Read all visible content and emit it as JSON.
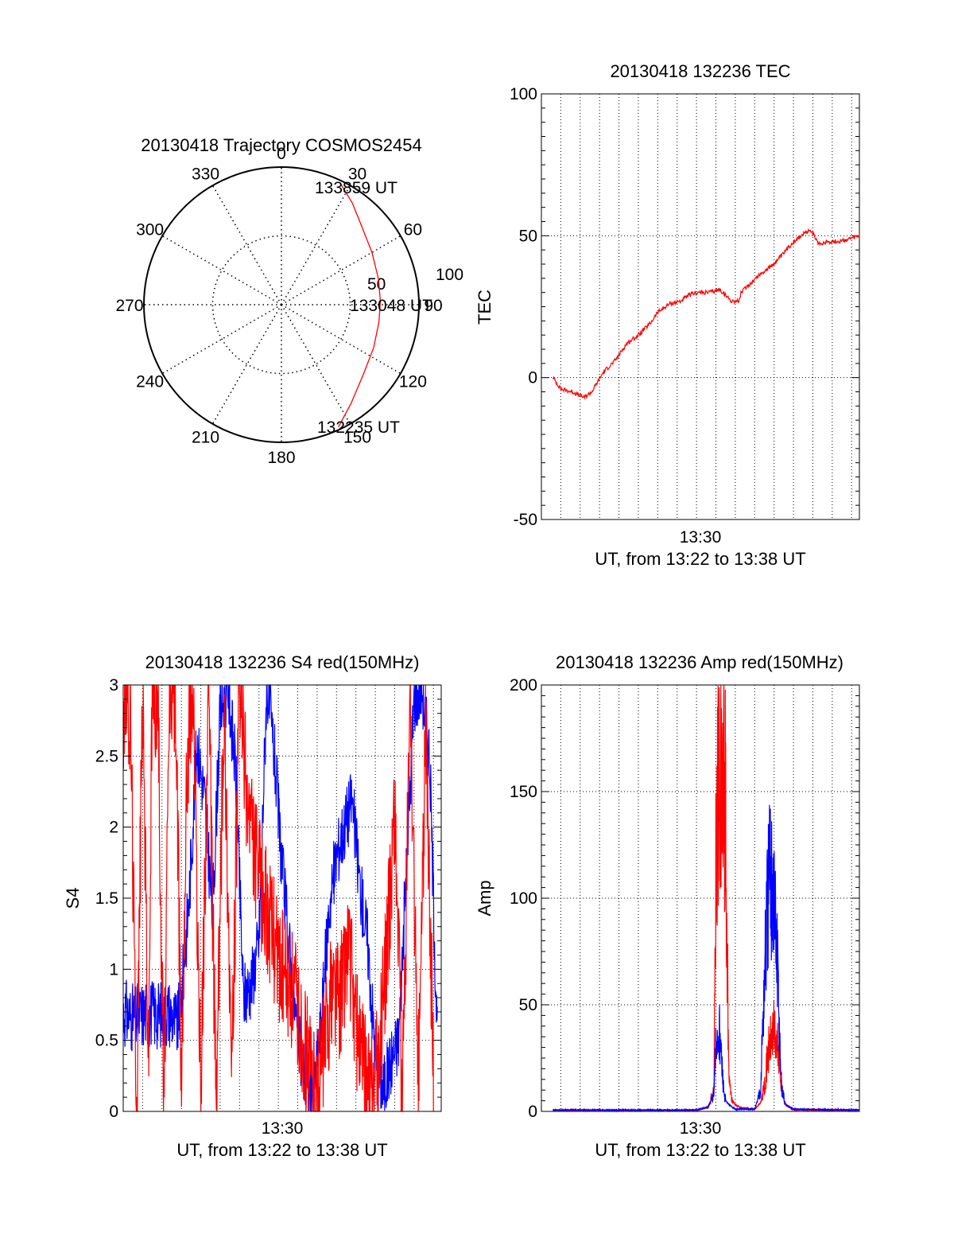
{
  "colors": {
    "red": "#ff0000",
    "blue": "#0000ff",
    "axis": "#000000",
    "grid": "#000000"
  },
  "chart_data": [
    {
      "id": "polar",
      "type": "polar-trajectory",
      "title": "20130418 Trajectory COSMOS2454",
      "angle_labels": [
        "0",
        "30",
        "60",
        "90",
        "120",
        "150",
        "180",
        "210",
        "240",
        "270",
        "300",
        "330"
      ],
      "radial_labels": [
        "50",
        "100"
      ],
      "radial_range": [
        0,
        100
      ],
      "labels": {
        "start": "132235 UT",
        "mid": "133048 UT",
        "end": "133859 UT"
      },
      "trajectory": {
        "azimuth_deg": [
          155,
          145,
          130,
          115,
          100,
          88,
          75,
          60,
          45,
          35,
          26
        ],
        "zenith": [
          98,
          88,
          78,
          74,
          72,
          72,
          73,
          76,
          82,
          90,
          98
        ]
      }
    },
    {
      "id": "tec",
      "type": "line",
      "title": "20130418 132236 TEC",
      "ylabel": "TEC",
      "xlabel": "UT, from 13:22 to 13:38 UT",
      "x_tick_label": "13:30",
      "ylim": [
        -50,
        100
      ],
      "yticks": [
        "100",
        "50",
        "0",
        "-50"
      ],
      "y_values": [
        100,
        50,
        0,
        -50
      ],
      "xlim_minutes": [
        0,
        16.4
      ],
      "series": [
        {
          "color": "red",
          "x": [
            0.6,
            1.0,
            1.6,
            2.2,
            2.6,
            3.2,
            3.8,
            4.4,
            5.0,
            5.6,
            6.0,
            6.6,
            7.2,
            7.6,
            8.0,
            8.6,
            9.2,
            9.8,
            10.2,
            10.3,
            10.6,
            11.2,
            11.8,
            12.4,
            13.0,
            13.6,
            13.9,
            14.3,
            14.8,
            15.4,
            16.0,
            16.4
          ],
          "y": [
            0,
            -4,
            -5,
            -7,
            -5,
            2,
            6,
            12,
            15,
            19,
            23,
            26,
            27,
            29,
            30,
            30,
            31,
            27,
            27,
            30,
            32,
            36,
            39,
            43,
            48,
            51,
            52,
            47,
            48,
            48,
            49,
            50
          ]
        }
      ]
    },
    {
      "id": "s4",
      "type": "line",
      "title": "20130418 132236 S4 red(150MHz)",
      "ylabel": "S4",
      "xlabel": "UT, from 13:22 to 13:38 UT",
      "x_tick_label": "13:30",
      "ylim": [
        0,
        3
      ],
      "yticks": [
        "3",
        "2.5",
        "2",
        "1.5",
        "1",
        "0.5",
        "0"
      ],
      "y_values": [
        3,
        2.5,
        2,
        1.5,
        1,
        0.5,
        0
      ],
      "xlim_minutes": [
        0,
        16.4
      ],
      "series": [
        {
          "color": "blue",
          "x": [
            0.0,
            0.6,
            1.2,
            1.8,
            2.4,
            2.8,
            3.0,
            3.4,
            3.8,
            4.2,
            4.6,
            5.0,
            5.4,
            5.8,
            6.2,
            6.6,
            7.0,
            7.4,
            7.8,
            8.2,
            8.6,
            9.0,
            9.4,
            9.8,
            10.2,
            10.6,
            11.0,
            11.4,
            11.8,
            12.2,
            12.6,
            13.0,
            13.4,
            13.8,
            14.2,
            14.6,
            15.0,
            15.4,
            15.8,
            16.2
          ],
          "y": [
            0.7,
            0.65,
            0.7,
            0.68,
            0.7,
            0.6,
            0.8,
            1.5,
            2.6,
            2.2,
            1.4,
            2.8,
            3.0,
            2.4,
            0.8,
            0.9,
            1.2,
            3.0,
            2.5,
            1.7,
            1.1,
            0.5,
            0.25,
            0.1,
            0.6,
            1.4,
            1.8,
            2.0,
            2.2,
            1.6,
            1.2,
            0.4,
            0.15,
            0.35,
            0.5,
            1.7,
            2.9,
            3.0,
            2.5,
            0.5
          ]
        },
        {
          "color": "red",
          "x": [
            0.0,
            0.2,
            0.4,
            0.7,
            1.0,
            1.3,
            1.5,
            1.8,
            2.1,
            2.4,
            2.7,
            3.0,
            3.3,
            3.6,
            4.0,
            4.4,
            4.8,
            5.2,
            5.6,
            6.0,
            6.4,
            6.8,
            7.2,
            7.6,
            8.0,
            8.4,
            8.8,
            9.2,
            9.6,
            10.0,
            10.4,
            10.8,
            11.2,
            11.6,
            12.0,
            12.4,
            12.8,
            13.2,
            13.6,
            14.0,
            14.4,
            14.8,
            15.2,
            15.6,
            16.0
          ],
          "y": [
            2.8,
            3.0,
            2.6,
            0.0,
            3.0,
            0.3,
            3.0,
            2.8,
            0.0,
            3.0,
            2.9,
            0.2,
            2.5,
            3.0,
            0.1,
            3.0,
            0.0,
            2.9,
            0.2,
            3.0,
            2.2,
            1.8,
            1.5,
            1.3,
            1.1,
            0.9,
            0.8,
            0.55,
            0.3,
            0.1,
            0.5,
            0.9,
            0.8,
            1.2,
            0.6,
            0.3,
            0.1,
            0.4,
            1.1,
            2.2,
            0.0,
            3.0,
            0.1,
            2.7,
            0.3
          ]
        }
      ]
    },
    {
      "id": "amp",
      "type": "line",
      "title": "20130418 132236 Amp red(150MHz)",
      "ylabel": "Amp",
      "xlabel": "UT, from 13:22 to 13:38 UT",
      "x_tick_label": "13:30",
      "ylim": [
        0,
        200
      ],
      "yticks": [
        "200",
        "150",
        "100",
        "50",
        "0"
      ],
      "y_values": [
        200,
        150,
        100,
        50,
        0
      ],
      "xlim_minutes": [
        0,
        16.4
      ],
      "series": [
        {
          "color": "red",
          "x": [
            0.6,
            8.0,
            8.6,
            8.9,
            9.0,
            9.1,
            9.2,
            9.3,
            9.4,
            9.5,
            9.6,
            9.7,
            9.8,
            10.0,
            10.4,
            11.0,
            11.3,
            11.5,
            11.7,
            11.9,
            12.0,
            12.1,
            12.2,
            12.3,
            12.4,
            12.6,
            13.0,
            16.4
          ],
          "y": [
            0.5,
            0.5,
            2,
            10,
            120,
            155,
            160,
            150,
            170,
            140,
            60,
            15,
            6,
            3,
            1.5,
            1,
            4,
            12,
            28,
            35,
            38,
            32,
            30,
            20,
            10,
            3,
            0.8,
            0.5
          ]
        },
        {
          "color": "blue",
          "x": [
            0.6,
            8.0,
            8.6,
            8.9,
            9.0,
            9.1,
            9.2,
            9.3,
            9.4,
            9.5,
            9.7,
            10.0,
            11.0,
            11.3,
            11.5,
            11.7,
            11.8,
            11.9,
            12.0,
            12.1,
            12.2,
            12.3,
            12.4,
            12.6,
            13.0,
            16.4
          ],
          "y": [
            0.6,
            0.6,
            2,
            8,
            30,
            35,
            38,
            22,
            10,
            5,
            3,
            1,
            1,
            10,
            60,
            100,
            105,
            110,
            95,
            80,
            60,
            30,
            10,
            3,
            1,
            0.6
          ]
        }
      ]
    }
  ]
}
